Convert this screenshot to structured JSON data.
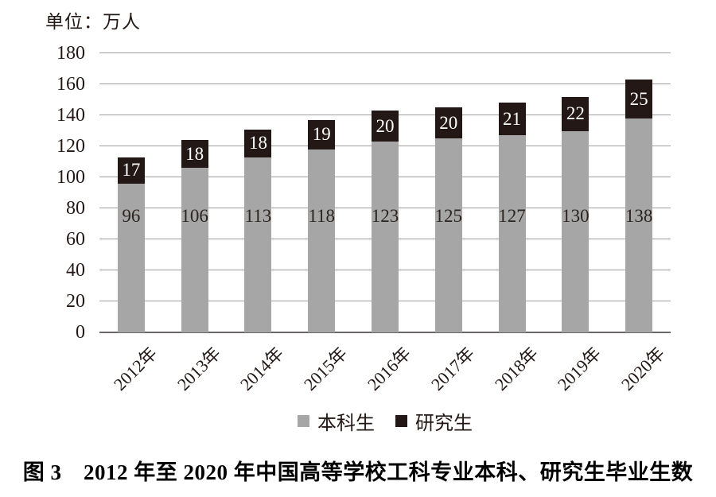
{
  "chart_data": {
    "type": "bar",
    "stacked": true,
    "unit_label": "单位：万人",
    "categories": [
      "2012年",
      "2013年",
      "2014年",
      "2015年",
      "2016年",
      "2017年",
      "2018年",
      "2019年",
      "2020年"
    ],
    "series": [
      {
        "name": "本科生",
        "values": [
          96,
          106,
          113,
          118,
          123,
          125,
          127,
          130,
          138
        ],
        "color": "#a6a6a7",
        "label_color": "#2b2420",
        "label_placement": "fixed-low"
      },
      {
        "name": "研究生",
        "values": [
          17,
          18,
          18,
          19,
          20,
          20,
          21,
          22,
          25
        ],
        "color": "#231815",
        "label_color": "#ffffff",
        "label_placement": "center"
      }
    ],
    "ylim": [
      0,
      180
    ],
    "ytick_step": 20,
    "grid": true,
    "gridline_color": "#9f9f9f",
    "axis_color": "#6b6766",
    "legend_position": "bottom",
    "xlabel": "",
    "ylabel": ""
  },
  "caption": "图 3　2012 年至 2020 年中国高等学校工科专业本科、研究生毕业生数"
}
